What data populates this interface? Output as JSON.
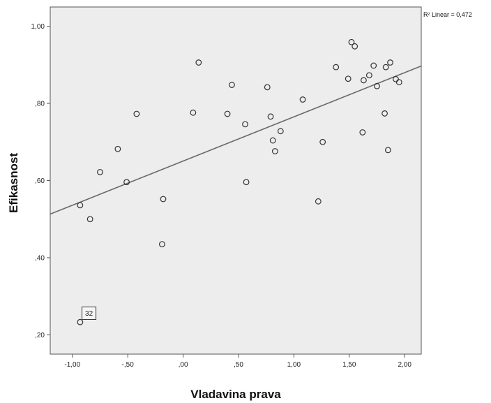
{
  "chart_data": {
    "type": "scatter",
    "xlabel": "Vladavina prava",
    "ylabel": "Efikasnost",
    "xlim": [
      -1.2,
      2.15
    ],
    "ylim": [
      0.15,
      1.05
    ],
    "xticks": [
      -1.0,
      -0.5,
      0.0,
      0.5,
      1.0,
      1.5,
      2.0
    ],
    "xtick_labels": [
      "-1,00",
      "-,50",
      ",00",
      ",50",
      "1,00",
      "1,50",
      "2,00"
    ],
    "yticks": [
      0.2,
      0.4,
      0.6,
      0.8,
      1.0
    ],
    "ytick_labels": [
      ",20",
      ",40",
      ",60",
      ",80",
      "1,00"
    ],
    "grid": false,
    "plot_background": "#ededed",
    "marker_color": "#333333",
    "fit_line_color": "#6a6a6a",
    "fit_line": {
      "label": "R² Linear = 0,472",
      "x": [
        -1.2,
        2.15
      ],
      "y": [
        0.513,
        0.897
      ]
    },
    "annotations": [
      {
        "text": "32",
        "x": -0.85,
        "y": 0.256
      }
    ],
    "points": [
      {
        "x": -0.93,
        "y": 0.233
      },
      {
        "x": -0.93,
        "y": 0.536
      },
      {
        "x": -0.84,
        "y": 0.5
      },
      {
        "x": -0.75,
        "y": 0.622
      },
      {
        "x": -0.59,
        "y": 0.682
      },
      {
        "x": -0.51,
        "y": 0.596
      },
      {
        "x": -0.42,
        "y": 0.773
      },
      {
        "x": -0.19,
        "y": 0.435
      },
      {
        "x": -0.18,
        "y": 0.552
      },
      {
        "x": 0.09,
        "y": 0.776
      },
      {
        "x": 0.14,
        "y": 0.906
      },
      {
        "x": 0.4,
        "y": 0.773
      },
      {
        "x": 0.44,
        "y": 0.848
      },
      {
        "x": 0.56,
        "y": 0.746
      },
      {
        "x": 0.57,
        "y": 0.596
      },
      {
        "x": 0.76,
        "y": 0.842
      },
      {
        "x": 0.79,
        "y": 0.766
      },
      {
        "x": 0.81,
        "y": 0.704
      },
      {
        "x": 0.83,
        "y": 0.676
      },
      {
        "x": 0.88,
        "y": 0.728
      },
      {
        "x": 1.08,
        "y": 0.81
      },
      {
        "x": 1.22,
        "y": 0.546
      },
      {
        "x": 1.26,
        "y": 0.7
      },
      {
        "x": 1.38,
        "y": 0.894
      },
      {
        "x": 1.49,
        "y": 0.864
      },
      {
        "x": 1.52,
        "y": 0.959
      },
      {
        "x": 1.55,
        "y": 0.948
      },
      {
        "x": 1.62,
        "y": 0.725
      },
      {
        "x": 1.63,
        "y": 0.86
      },
      {
        "x": 1.68,
        "y": 0.873
      },
      {
        "x": 1.72,
        "y": 0.898
      },
      {
        "x": 1.75,
        "y": 0.845
      },
      {
        "x": 1.82,
        "y": 0.774
      },
      {
        "x": 1.83,
        "y": 0.894
      },
      {
        "x": 1.85,
        "y": 0.679
      },
      {
        "x": 1.87,
        "y": 0.906
      },
      {
        "x": 1.92,
        "y": 0.863
      },
      {
        "x": 1.95,
        "y": 0.855
      }
    ]
  }
}
